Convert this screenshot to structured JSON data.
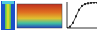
{
  "chart_data": {
    "type": "line",
    "x": [
      0,
      1,
      2,
      3,
      4,
      5,
      6,
      7,
      8,
      9,
      10
    ],
    "values": [
      0,
      5,
      20,
      45,
      70,
      85,
      92,
      95,
      97,
      98,
      98
    ],
    "color": "#222222",
    "marker": "square",
    "xlim": [
      0,
      10
    ],
    "ylim": [
      0,
      100
    ],
    "xticks": [
      0,
      2,
      4,
      6,
      8,
      10
    ],
    "yticks": [
      0,
      20,
      40,
      60,
      80,
      100
    ],
    "grid": false,
    "tick_labels": false
  }
}
